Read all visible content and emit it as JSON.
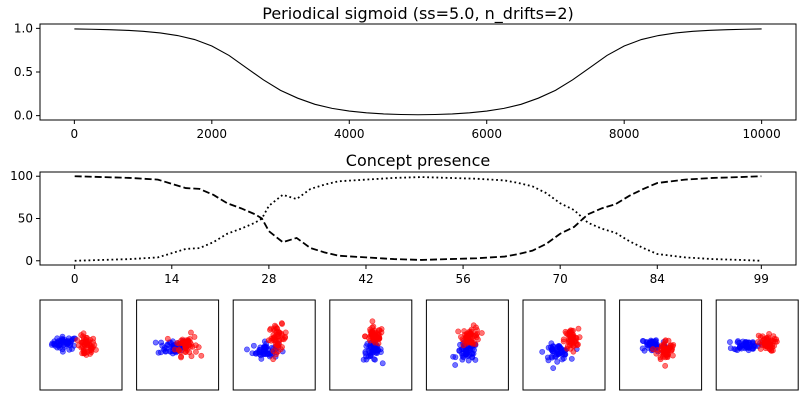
{
  "chart_data": [
    {
      "type": "line",
      "title": "Periodical sigmoid (ss=5.0, n_drifts=2)",
      "xlabel": "",
      "ylabel": "",
      "xlim": [
        -500,
        10500
      ],
      "ylim": [
        -0.05,
        1.05
      ],
      "xticks": [
        0,
        2000,
        4000,
        6000,
        8000,
        10000
      ],
      "yticks": [
        0.0,
        0.5,
        1.0
      ],
      "xtick_labels": [
        "0",
        "2000",
        "4000",
        "6000",
        "8000",
        "10000"
      ],
      "ytick_labels": [
        "0.0",
        "0.5",
        "1.0"
      ],
      "grid": false,
      "series": [
        {
          "color": "#000000",
          "style": "solid",
          "x": [
            0,
            250,
            500,
            750,
            1000,
            1250,
            1500,
            1750,
            2000,
            2250,
            2500,
            2750,
            3000,
            3250,
            3500,
            3750,
            4000,
            4250,
            4500,
            4750,
            5000,
            5250,
            5500,
            5750,
            6000,
            6250,
            6500,
            6750,
            7000,
            7250,
            7500,
            7750,
            8000,
            8250,
            8500,
            8750,
            9000,
            9250,
            9500,
            9750,
            10000
          ],
          "values": [
            0.993,
            0.99,
            0.985,
            0.978,
            0.966,
            0.948,
            0.918,
            0.872,
            0.798,
            0.69,
            0.55,
            0.41,
            0.29,
            0.2,
            0.13,
            0.083,
            0.052,
            0.032,
            0.02,
            0.013,
            0.01,
            0.013,
            0.02,
            0.032,
            0.052,
            0.083,
            0.13,
            0.2,
            0.29,
            0.41,
            0.55,
            0.69,
            0.798,
            0.872,
            0.918,
            0.948,
            0.966,
            0.978,
            0.985,
            0.99,
            0.993
          ]
        }
      ]
    },
    {
      "type": "line",
      "title": "Concept presence",
      "xlabel": "",
      "ylabel": "",
      "xlim": [
        -5,
        104
      ],
      "ylim": [
        -5,
        105
      ],
      "xticks": [
        0,
        14,
        28,
        42,
        56,
        70,
        84,
        99
      ],
      "yticks": [
        0,
        50,
        100
      ],
      "xtick_labels": [
        "0",
        "14",
        "28",
        "42",
        "56",
        "70",
        "84",
        "99"
      ],
      "ytick_labels": [
        "0",
        "50",
        "100"
      ],
      "grid": false,
      "series": [
        {
          "color": "#000000",
          "style": "dashed",
          "x": [
            0,
            4,
            8,
            12,
            16,
            18,
            20,
            22,
            24,
            26,
            27,
            28,
            30,
            32,
            34,
            36,
            38,
            42,
            46,
            50,
            54,
            58,
            62,
            64,
            66,
            68,
            70,
            72,
            74,
            76,
            78,
            80,
            82,
            84,
            88,
            92,
            96,
            99
          ],
          "values": [
            100,
            99,
            98,
            96,
            86,
            85,
            78,
            68,
            62,
            55,
            50,
            35,
            22,
            27,
            15,
            10,
            6,
            4,
            2,
            1,
            2,
            3,
            5,
            8,
            12,
            20,
            32,
            40,
            55,
            62,
            67,
            77,
            85,
            92,
            96,
            98,
            99,
            100
          ]
        },
        {
          "color": "#000000",
          "style": "dotted",
          "x": [
            0,
            4,
            8,
            12,
            16,
            18,
            20,
            22,
            24,
            26,
            27,
            28,
            30,
            32,
            34,
            36,
            38,
            42,
            46,
            50,
            54,
            58,
            62,
            64,
            66,
            68,
            70,
            72,
            74,
            76,
            78,
            80,
            82,
            84,
            88,
            92,
            96,
            99
          ],
          "values": [
            0,
            1,
            2,
            4,
            14,
            15,
            22,
            32,
            38,
            45,
            50,
            65,
            78,
            73,
            85,
            90,
            94,
            96,
            98,
            99,
            98,
            97,
            95,
            92,
            88,
            80,
            68,
            60,
            45,
            38,
            33,
            23,
            15,
            8,
            4,
            2,
            1,
            0
          ]
        }
      ]
    },
    {
      "type": "scatter",
      "title": "",
      "grid": false,
      "panels": [
        {
          "blue": {
            "center": [
              -0.45,
              0.05
            ],
            "spread": [
              0.35,
              0.18
            ]
          },
          "red": {
            "center": [
              0.15,
              -0.05
            ],
            "spread": [
              0.25,
              0.3
            ]
          }
        },
        {
          "blue": {
            "center": [
              -0.15,
              -0.05
            ],
            "spread": [
              0.4,
              0.22
            ]
          },
          "red": {
            "center": [
              0.25,
              0.0
            ],
            "spread": [
              0.3,
              0.3
            ]
          }
        },
        {
          "blue": {
            "center": [
              -0.25,
              -0.15
            ],
            "spread": [
              0.35,
              0.22
            ]
          },
          "red": {
            "center": [
              0.1,
              0.2
            ],
            "spread": [
              0.25,
              0.35
            ]
          }
        },
        {
          "blue": {
            "center": [
              0.05,
              -0.15
            ],
            "spread": [
              0.25,
              0.28
            ]
          },
          "red": {
            "center": [
              0.1,
              0.25
            ],
            "spread": [
              0.25,
              0.25
            ]
          }
        },
        {
          "blue": {
            "center": [
              0.0,
              -0.2
            ],
            "spread": [
              0.3,
              0.28
            ]
          },
          "red": {
            "center": [
              0.1,
              0.25
            ],
            "spread": [
              0.25,
              0.25
            ]
          }
        },
        {
          "blue": {
            "center": [
              -0.2,
              -0.2
            ],
            "spread": [
              0.35,
              0.22
            ]
          },
          "red": {
            "center": [
              0.2,
              0.15
            ],
            "spread": [
              0.2,
              0.3
            ]
          }
        },
        {
          "blue": {
            "center": [
              -0.2,
              0.0
            ],
            "spread": [
              0.35,
              0.2
            ]
          },
          "red": {
            "center": [
              0.15,
              -0.15
            ],
            "spread": [
              0.25,
              0.3
            ]
          }
        },
        {
          "blue": {
            "center": [
              -0.3,
              0.0
            ],
            "spread": [
              0.35,
              0.15
            ]
          },
          "red": {
            "center": [
              0.25,
              0.05
            ],
            "spread": [
              0.25,
              0.22
            ]
          }
        }
      ],
      "point_colors": {
        "blue": "#0000ff",
        "red": "#ff0000"
      },
      "points_per_class": 50
    }
  ]
}
